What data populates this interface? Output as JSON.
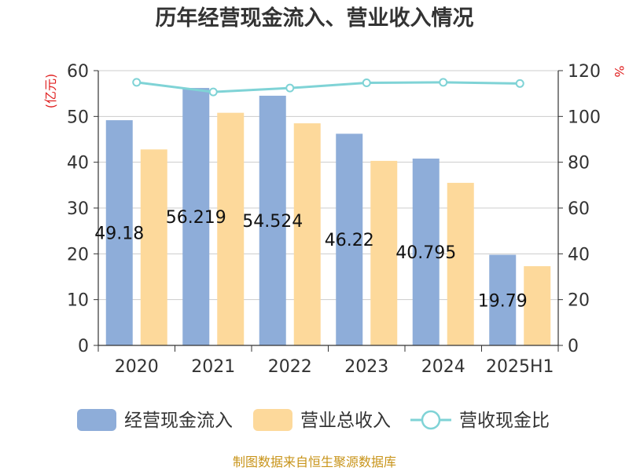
{
  "chart_data": {
    "type": "bar",
    "title": "历年经营现金流入、营业收入情况",
    "categories": [
      "2020",
      "2021",
      "2022",
      "2023",
      "2024",
      "2025H1"
    ],
    "left_axis": {
      "label": "(亿元)",
      "ylim": [
        0,
        60
      ],
      "ticks": [
        "0",
        "10",
        "20",
        "30",
        "40",
        "50",
        "60"
      ]
    },
    "right_axis": {
      "label": "%",
      "ylim": [
        0,
        120
      ],
      "ticks": [
        "0",
        "20",
        "40",
        "60",
        "80",
        "100",
        "120"
      ]
    },
    "series": [
      {
        "name": "经营现金流入",
        "kind": "bar",
        "axis": "left",
        "color": "#8eadd9",
        "values": [
          49.18,
          56.219,
          54.524,
          46.22,
          40.795,
          19.79
        ],
        "labels": [
          "49.18",
          "56.219",
          "54.524",
          "46.22",
          "40.795",
          "19.79"
        ]
      },
      {
        "name": "营业总收入",
        "kind": "bar",
        "axis": "left",
        "color": "#fdd99b",
        "values": [
          42.8,
          50.8,
          48.5,
          40.3,
          35.5,
          17.3
        ]
      },
      {
        "name": "营收现金比",
        "kind": "line",
        "axis": "right",
        "color": "#7fd3d6",
        "values": [
          114.9,
          110.7,
          112.4,
          114.7,
          114.9,
          114.4
        ]
      }
    ],
    "grid": true,
    "legend_position": "bottom"
  },
  "source_text": "制图数据来自恒生聚源数据库"
}
